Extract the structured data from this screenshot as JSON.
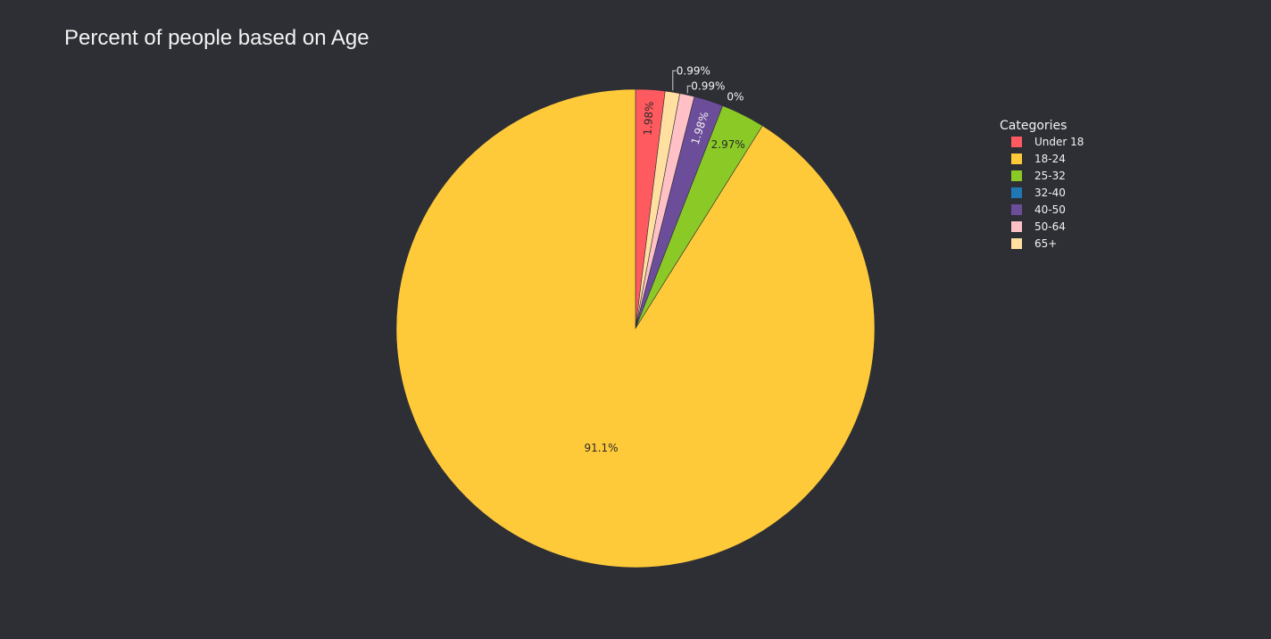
{
  "chart_data": {
    "type": "pie",
    "title": "Percent of people based on Age",
    "legend_title": "Categories",
    "legend_position": "top-right",
    "background": "#2d2f34",
    "direction": "clockwise",
    "start": "top",
    "slices": [
      {
        "label": "Under 18",
        "value": 1.98,
        "text": "1.98%",
        "color": "#ff5a5f",
        "text_color": "#2a2a2a",
        "placement": "inside-radial"
      },
      {
        "label": "65+",
        "value": 0.99,
        "text": "0.99%",
        "color": "#ffe0a0",
        "text_color": "#f2f2f2",
        "placement": "outside"
      },
      {
        "label": "50-64",
        "value": 0.99,
        "text": "0.99%",
        "color": "#ffc1c6",
        "text_color": "#f2f2f2",
        "placement": "outside"
      },
      {
        "label": "40-50",
        "value": 1.98,
        "text": "1.98%",
        "color": "#6c4d9a",
        "text_color": "#f2f2f2",
        "placement": "inside-radial"
      },
      {
        "label": "32-40",
        "value": 0,
        "text": "0%",
        "color": "#1f78b4",
        "text_color": "#f2f2f2",
        "placement": "outside"
      },
      {
        "label": "25-32",
        "value": 2.97,
        "text": "2.97%",
        "color": "#8ac926",
        "text_color": "#2a2a2a",
        "placement": "inside"
      },
      {
        "label": "18-24",
        "value": 91.1,
        "text": "91.1%",
        "color": "#ffca3a",
        "text_color": "#2a2a2a",
        "placement": "inside"
      }
    ],
    "legend": [
      {
        "label": "Under 18",
        "color": "#ff5a5f"
      },
      {
        "label": "18-24",
        "color": "#ffca3a"
      },
      {
        "label": "25-32",
        "color": "#8ac926"
      },
      {
        "label": "32-40",
        "color": "#1f78b4"
      },
      {
        "label": "40-50",
        "color": "#6c4d9a"
      },
      {
        "label": "50-64",
        "color": "#ffc1c6"
      },
      {
        "label": "65+",
        "color": "#ffe0a0"
      }
    ]
  }
}
